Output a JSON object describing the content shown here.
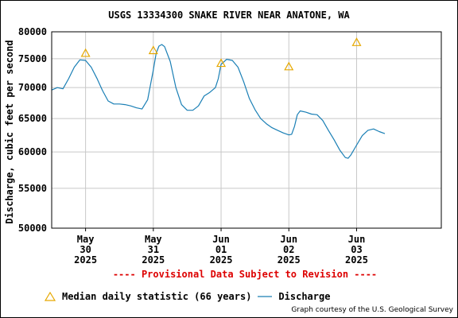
{
  "title": "USGS 13334300 SNAKE RIVER NEAR ANATONE, WA",
  "provisional_note": "---- Provisional Data Subject to Revision ----",
  "legend": {
    "median_label": "Median daily statistic (66 years)",
    "discharge_label": "Discharge"
  },
  "courtesy": "Graph courtesy of the U.S. Geological Survey",
  "colors": {
    "discharge": "#1a7fb5",
    "median": "#e6a800",
    "grid": "#c8c8c8",
    "provisional": "#dd0000"
  },
  "chart_data": {
    "type": "line",
    "title": "USGS 13334300 SNAKE RIVER NEAR ANATONE, WA",
    "ylabel": "Discharge, cubic feet per second",
    "xlabel": "",
    "y_scale": "log",
    "ylim": [
      50000,
      80000
    ],
    "y_ticks": [
      {
        "value": 80000,
        "label": "80000"
      },
      {
        "value": 75000,
        "label": "75000"
      },
      {
        "value": 70000,
        "label": "70000"
      },
      {
        "value": 65000,
        "label": "65000"
      },
      {
        "value": 60000,
        "label": "60000"
      },
      {
        "value": 55000,
        "label": "55000"
      },
      {
        "value": 50000,
        "label": "50000"
      }
    ],
    "xlim": [
      "2025-05-29 12:00",
      "2025-06-04 06:00"
    ],
    "x_ticks": [
      {
        "date": "2025-05-30 00:00",
        "month": "May",
        "day": "30",
        "year": "2025"
      },
      {
        "date": "2025-05-31 00:00",
        "month": "May",
        "day": "31",
        "year": "2025"
      },
      {
        "date": "2025-06-01 00:00",
        "month": "Jun",
        "day": "01",
        "year": "2025"
      },
      {
        "date": "2025-06-02 00:00",
        "month": "Jun",
        "day": "02",
        "year": "2025"
      },
      {
        "date": "2025-06-03 00:00",
        "month": "Jun",
        "day": "03",
        "year": "2025"
      }
    ],
    "grid": true,
    "series": [
      {
        "name": "Discharge",
        "points": [
          [
            "2025-05-29 12:00",
            69600
          ],
          [
            "2025-05-29 14:00",
            70000
          ],
          [
            "2025-05-29 16:00",
            69800
          ],
          [
            "2025-05-29 18:00",
            71500
          ],
          [
            "2025-05-29 20:00",
            73500
          ],
          [
            "2025-05-29 22:00",
            74800
          ],
          [
            "2025-05-30 00:00",
            74700
          ],
          [
            "2025-05-30 02:00",
            73500
          ],
          [
            "2025-05-30 04:00",
            71600
          ],
          [
            "2025-05-30 06:00",
            69500
          ],
          [
            "2025-05-30 08:00",
            67800
          ],
          [
            "2025-05-30 10:00",
            67300
          ],
          [
            "2025-05-30 12:00",
            67300
          ],
          [
            "2025-05-30 14:00",
            67200
          ],
          [
            "2025-05-30 16:00",
            67000
          ],
          [
            "2025-05-30 18:00",
            66700
          ],
          [
            "2025-05-30 20:00",
            66500
          ],
          [
            "2025-05-30 22:00",
            68000
          ],
          [
            "2025-05-31 00:00",
            73000
          ],
          [
            "2025-05-31 01:00",
            76000
          ],
          [
            "2025-05-31 02:00",
            77300
          ],
          [
            "2025-05-31 03:00",
            77600
          ],
          [
            "2025-05-31 04:00",
            77200
          ],
          [
            "2025-05-31 06:00",
            74500
          ],
          [
            "2025-05-31 08:00",
            70000
          ],
          [
            "2025-05-31 10:00",
            67200
          ],
          [
            "2025-05-31 12:00",
            66300
          ],
          [
            "2025-05-31 14:00",
            66300
          ],
          [
            "2025-05-31 16:00",
            67000
          ],
          [
            "2025-05-31 18:00",
            68600
          ],
          [
            "2025-05-31 20:00",
            69200
          ],
          [
            "2025-05-31 22:00",
            70000
          ],
          [
            "2025-05-31 23:00",
            71500
          ],
          [
            "2025-06-01 00:00",
            74000
          ],
          [
            "2025-06-01 02:00",
            74900
          ],
          [
            "2025-06-01 04:00",
            74700
          ],
          [
            "2025-06-01 06:00",
            73500
          ],
          [
            "2025-06-01 08:00",
            71000
          ],
          [
            "2025-06-01 10:00",
            68200
          ],
          [
            "2025-06-01 12:00",
            66400
          ],
          [
            "2025-06-01 14:00",
            65000
          ],
          [
            "2025-06-01 16:00",
            64200
          ],
          [
            "2025-06-01 18:00",
            63600
          ],
          [
            "2025-06-01 20:00",
            63200
          ],
          [
            "2025-06-01 22:00",
            62800
          ],
          [
            "2025-06-02 00:00",
            62500
          ],
          [
            "2025-06-02 01:00",
            62600
          ],
          [
            "2025-06-02 02:00",
            63800
          ],
          [
            "2025-06-02 03:00",
            65600
          ],
          [
            "2025-06-02 04:00",
            66200
          ],
          [
            "2025-06-02 06:00",
            66000
          ],
          [
            "2025-06-02 08:00",
            65700
          ],
          [
            "2025-06-02 10:00",
            65600
          ],
          [
            "2025-06-02 12:00",
            64700
          ],
          [
            "2025-06-02 14:00",
            63200
          ],
          [
            "2025-06-02 16:00",
            61800
          ],
          [
            "2025-06-02 18:00",
            60300
          ],
          [
            "2025-06-02 20:00",
            59200
          ],
          [
            "2025-06-02 21:00",
            59100
          ],
          [
            "2025-06-02 22:00",
            59600
          ],
          [
            "2025-06-03 00:00",
            61000
          ],
          [
            "2025-06-03 02:00",
            62400
          ],
          [
            "2025-06-03 04:00",
            63200
          ],
          [
            "2025-06-03 06:00",
            63400
          ],
          [
            "2025-06-03 08:00",
            63000
          ],
          [
            "2025-06-03 10:00",
            62700
          ]
        ]
      },
      {
        "name": "Median daily statistic (66 years)",
        "points": [
          [
            "2025-05-30 00:00",
            76000
          ],
          [
            "2025-05-31 00:00",
            76500
          ],
          [
            "2025-06-01 00:00",
            74200
          ],
          [
            "2025-06-02 00:00",
            73600
          ],
          [
            "2025-06-03 00:00",
            78000
          ]
        ]
      }
    ]
  }
}
